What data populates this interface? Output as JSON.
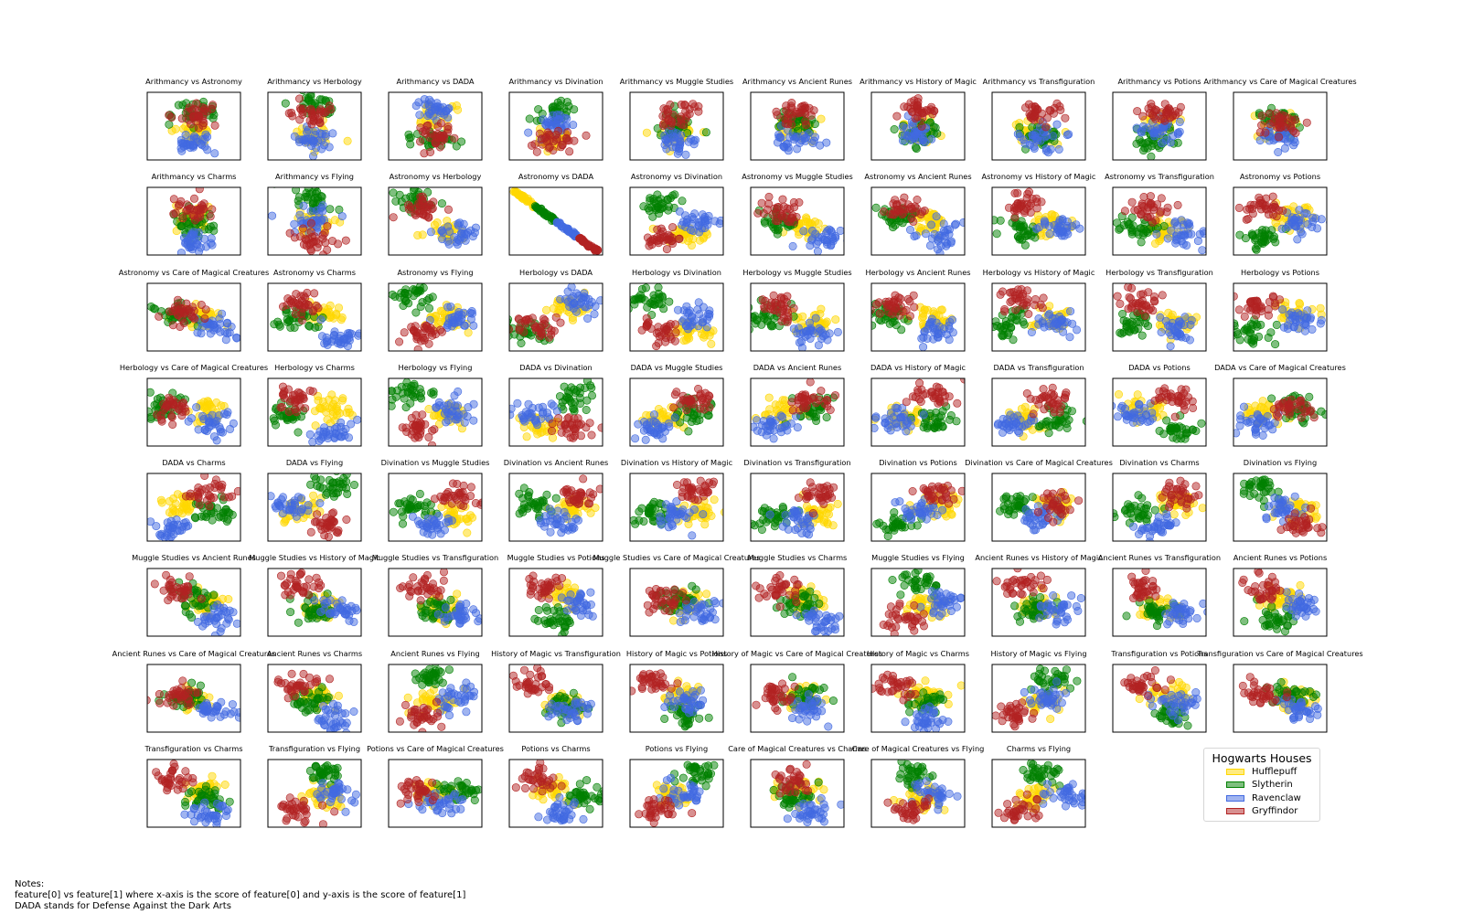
{
  "chart_data": {
    "type": "scatter",
    "title": "",
    "subjects": [
      "Arithmancy",
      "Astronomy",
      "Herbology",
      "DADA",
      "Divination",
      "Muggle Studies",
      "Ancient Runes",
      "History of Magic",
      "Transfiguration",
      "Potions",
      "Care of Magical Creatures",
      "Charms",
      "Flying"
    ],
    "panels": [
      "Arithmancy vs Astronomy",
      "Arithmancy vs Herbology",
      "Arithmancy vs DADA",
      "Arithmancy vs Divination",
      "Arithmancy vs Muggle Studies",
      "Arithmancy vs Ancient Runes",
      "Arithmancy vs History of Magic",
      "Arithmancy vs Transfiguration",
      "Arithmancy vs Potions",
      "Arithmancy vs Care of Magical Creatures",
      "Arithmancy vs Charms",
      "Arithmancy vs Flying",
      "Astronomy vs Herbology",
      "Astronomy vs DADA",
      "Astronomy vs Divination",
      "Astronomy vs Muggle Studies",
      "Astronomy vs Ancient Runes",
      "Astronomy vs History of Magic",
      "Astronomy vs Transfiguration",
      "Astronomy vs Potions",
      "Astronomy vs Care of Magical Creatures",
      "Astronomy vs Charms",
      "Astronomy vs Flying",
      "Herbology vs DADA",
      "Herbology vs Divination",
      "Herbology vs Muggle Studies",
      "Herbology vs Ancient Runes",
      "Herbology vs History of Magic",
      "Herbology vs Transfiguration",
      "Herbology vs Potions",
      "Herbology vs Care of Magical Creatures",
      "Herbology vs Charms",
      "Herbology vs Flying",
      "DADA vs Divination",
      "DADA vs Muggle Studies",
      "DADA vs Ancient Runes",
      "DADA vs History of Magic",
      "DADA vs Transfiguration",
      "DADA vs Potions",
      "DADA vs Care of Magical Creatures",
      "DADA vs Charms",
      "DADA vs Flying",
      "Divination vs Muggle Studies",
      "Divination vs Ancient Runes",
      "Divination vs History of Magic",
      "Divination vs Transfiguration",
      "Divination vs Potions",
      "Divination vs Care of Magical Creatures",
      "Divination vs Charms",
      "Divination vs Flying",
      "Muggle Studies vs Ancient Runes",
      "Muggle Studies vs History of Magic",
      "Muggle Studies vs Transfiguration",
      "Muggle Studies vs Potions",
      "Muggle Studies vs Care of Magical Creatures",
      "Muggle Studies vs Charms",
      "Muggle Studies vs Flying",
      "Ancient Runes vs History of Magic",
      "Ancient Runes vs Transfiguration",
      "Ancient Runes vs Potions",
      "Ancient Runes vs Care of Magical Creatures",
      "Ancient Runes vs Charms",
      "Ancient Runes vs Flying",
      "History of Magic vs Transfiguration",
      "History of Magic vs Potions",
      "History of Magic vs Care of Magical Creatures",
      "History of Magic vs Charms",
      "History of Magic vs Flying",
      "Transfiguration vs Potions",
      "Transfiguration vs Care of Magical Creatures",
      "Transfiguration vs Charms",
      "Transfiguration vs Flying",
      "Potions vs Care of Magical Creatures",
      "Potions vs Charms",
      "Potions vs Flying",
      "Care of Magical Creatures vs Charms",
      "Care of Magical Creatures vs Flying",
      "Charms vs Flying"
    ],
    "series": [
      {
        "name": "Hufflepuff",
        "color": "#FFD700"
      },
      {
        "name": "Slytherin",
        "color": "#008000"
      },
      {
        "name": "Ravenclaw",
        "color": "#4169E1"
      },
      {
        "name": "Gryffindor",
        "color": "#B22222"
      }
    ],
    "grid": false,
    "legend": {
      "title": "Hogwarts Houses",
      "placement": "bottom-right"
    }
  },
  "notes": {
    "line1": "Notes:",
    "line2": "feature[0] vs feature[1] where x-axis is the score of feature[0] and y-axis is the score of feature[1]",
    "line3": "DADA stands for Defense Against the Dark Arts"
  }
}
